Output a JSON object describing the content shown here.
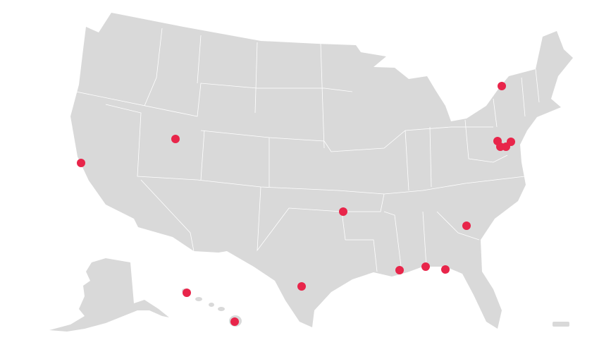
{
  "map": {
    "land_color": "#d9d9d9",
    "border_color": "#ffffff",
    "marker_color": "#e8254a"
  }
}
